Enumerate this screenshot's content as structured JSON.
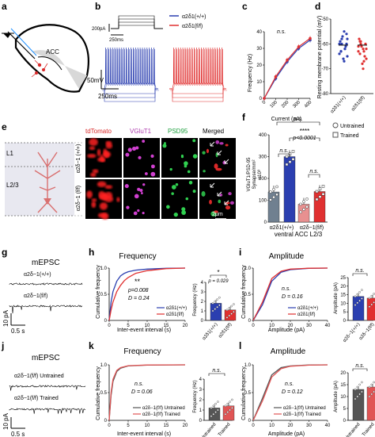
{
  "panel_labels": [
    "a",
    "b",
    "c",
    "d",
    "e",
    "f",
    "g",
    "h",
    "i",
    "j",
    "k",
    "l"
  ],
  "colors": {
    "wt": "#2b3fb0",
    "ko": "#e03030",
    "untrained": "#555555",
    "trained": "#e05555"
  },
  "panel_a": {
    "region": "ACC"
  },
  "panel_b": {
    "stim_scale": "200pA",
    "stim_time": "250ms",
    "trace_scale_v": "50mV",
    "trace_scale_t": "250ms",
    "legend": [
      "α2δ1(+/+)",
      "α2δ1(f/f)"
    ]
  },
  "panel_c": {
    "ylabel": "Frequency (Hz)",
    "xlabel": "Current (pA)",
    "yticks": [
      "0",
      "10",
      "20",
      "30",
      "40"
    ],
    "xticks": [
      "0",
      "100",
      "200",
      "300",
      "400"
    ],
    "ns": "n.s."
  },
  "panel_d": {
    "ylabel": "Resting membrane potential (mV)",
    "yticks": [
      "-50",
      "-60",
      "-70",
      "-80"
    ],
    "xcats": [
      "α2δ1(+/+)",
      "α2δ1(f/f)"
    ]
  },
  "panel_e": {
    "layers": [
      "L1",
      "L2/3"
    ],
    "cols": [
      "tdTomato",
      "VGluT1",
      "PSD95",
      "Merged"
    ],
    "rows": [
      "α2δ−1 (+/+)",
      "α2δ−1 (f/f)"
    ],
    "scale": "2μm"
  },
  "panel_f": {
    "ylabel_1": "VGluT1/PSD-95",
    "ylabel_2": "Synapse/mm²",
    "ylabel_3": "x10³",
    "yticks": [
      "0",
      "100",
      "200",
      "300",
      "400"
    ],
    "xcats": [
      "α2δ1(+/+)",
      "α2δ−1(f/f)"
    ],
    "xlabel": "ventral ACC L2/3",
    "legend": [
      "Untrained",
      "Trained"
    ],
    "stats_top": "n.s.",
    "stats_stars": "****",
    "stats_p": "p<0.0001",
    "stats_ns1": "n.s.",
    "stats_ns2": "n.s."
  },
  "panel_g": {
    "title": "mEPSC",
    "labels": [
      "α2δ−1(+/+)",
      "α2δ−1(f/f)"
    ],
    "scale_y": "10 pA",
    "scale_x": "0.5 s"
  },
  "panel_h": {
    "title": "Frequency",
    "ylabel": "Cumulative frequency",
    "xlabel": "Inter-event interval (s)",
    "stars": "**",
    "p": "p=0.008",
    "D": "D = 0.24",
    "xticks": [
      "0",
      "5",
      "10",
      "15",
      "20"
    ],
    "yticks": [
      "0",
      "0.5",
      "1.0"
    ],
    "legend": [
      "α2δ1(+/+)",
      "α2δ1(f/f)"
    ],
    "inset_ylabel": "Frequency (Hz)",
    "inset_star": "*",
    "inset_p": "p = 0.029",
    "inset_yticks": [
      "0",
      "1",
      "2",
      "3",
      "4"
    ],
    "inset_xcats": [
      "α2δ1(+/+)",
      "α2δ1(f/f)"
    ]
  },
  "panel_i": {
    "title": "Amplitude",
    "ylabel": "Cumulative frequency",
    "xlabel": "Amplitude (pA)",
    "ns": "n.s.",
    "D": "D = 0.16",
    "xticks": [
      "0",
      "10",
      "20",
      "30",
      "40"
    ],
    "yticks": [
      "0",
      "0.5",
      "1.0"
    ],
    "legend": [
      "α2δ1(+/+)",
      "α2δ1(f/f)"
    ],
    "inset_ylabel": "Amplitude (pA)",
    "inset_ns": "n.s.",
    "inset_yticks": [
      "0",
      "5",
      "10",
      "15",
      "20",
      "25"
    ],
    "inset_xcats": [
      "α2δ−1(+/+)",
      "α2δ−1(f/f)"
    ]
  },
  "panel_j": {
    "title": "mEPSC",
    "labels": [
      "α2δ−1(f/f) Untrained",
      "α2δ−1(f/f) Trained"
    ],
    "scale_y": "10 pA",
    "scale_x": "0.5 s"
  },
  "panel_k": {
    "title": "Frequency",
    "ylabel": "Cumulative frequency",
    "xlabel": "Inter-event interval (s)",
    "ns": "n.s.",
    "D": "D = 0.06",
    "xticks": [
      "0",
      "5",
      "10",
      "15",
      "20"
    ],
    "yticks": [
      "0",
      "0.5",
      "1.0"
    ],
    "legend": [
      "α2δ−1(f/f) Untrained",
      "α2δ−1(f/f) Trained"
    ],
    "inset_ylabel": "Frequency (Hz)",
    "inset_ns": "n.s.",
    "inset_yticks": [
      "0",
      "1",
      "2",
      "3",
      "4"
    ],
    "inset_xcats": [
      "Untrained",
      "Trained"
    ]
  },
  "panel_l": {
    "title": "Amplitude",
    "ylabel": "Cumulative frequency",
    "xlabel": "Amplitude (pA)",
    "ns": "n.s.",
    "D": "D = 0.12",
    "xticks": [
      "0",
      "10",
      "20",
      "30",
      "40"
    ],
    "yticks": [
      "0",
      "0.5",
      "1.0"
    ],
    "legend": [
      "α2δ−1(f/f) Untrained",
      "α2δ−1(f/f) Trained"
    ],
    "inset_ylabel": "Amplitude (pA)",
    "inset_ns": "n.s.",
    "inset_yticks": [
      "0",
      "5",
      "10",
      "15",
      "20"
    ],
    "inset_xcats": [
      "Untrained",
      "Trained"
    ]
  },
  "chart_data": [
    {
      "type": "line",
      "x": [
        0,
        100,
        200,
        300,
        400
      ],
      "series": [
        {
          "name": "α2δ1(+/+)",
          "values": [
            0,
            12,
            22,
            30,
            35
          ]
        },
        {
          "name": "α2δ1(f/f)",
          "values": [
            0,
            13,
            23,
            31,
            36
          ]
        }
      ],
      "xlabel": "Current (pA)",
      "ylabel": "Frequency (Hz)",
      "ylim": [
        0,
        40
      ]
    },
    {
      "type": "scatter",
      "categories": [
        "α2δ1(+/+)",
        "α2δ1(f/f)"
      ],
      "series": [
        {
          "name": "α2δ1(+/+)",
          "values": [
            -60,
            -62,
            -58,
            -65,
            -55,
            -63,
            -60,
            -66,
            -59,
            -61,
            -57,
            -64,
            -62,
            -60,
            -58,
            -67,
            -63,
            -56
          ]
        },
        {
          "name": "α2δ1(f/f)",
          "values": [
            -61,
            -63,
            -59,
            -66,
            -62,
            -64,
            -60,
            -68,
            -58,
            -65,
            -61,
            -63,
            -67,
            -60,
            -62,
            -70,
            -59
          ]
        }
      ],
      "ylabel": "Resting membrane potential (mV)",
      "ylim": [
        -80,
        -50
      ]
    },
    {
      "type": "bar",
      "categories": [
        "α2δ1(+/+)",
        "α2δ−1(f/f)"
      ],
      "series": [
        {
          "name": "Untrained",
          "values": [
            138,
            82
          ]
        },
        {
          "name": "Trained",
          "values": [
            300,
            140
          ]
        }
      ],
      "xlabel": "ventral ACC L2/3",
      "ylim": [
        0,
        400
      ]
    },
    {
      "type": "line",
      "x": [
        0,
        0.5,
        1,
        2,
        3,
        4,
        5,
        7,
        10,
        15,
        20
      ],
      "series": [
        {
          "name": "α2δ1(+/+)",
          "values": [
            0,
            0.35,
            0.55,
            0.75,
            0.85,
            0.9,
            0.93,
            0.96,
            0.98,
            0.995,
            1.0
          ]
        },
        {
          "name": "α2δ1(f/f)",
          "values": [
            0,
            0.2,
            0.35,
            0.55,
            0.67,
            0.76,
            0.82,
            0.9,
            0.95,
            0.99,
            1.0
          ]
        }
      ],
      "xlabel": "Inter-event interval (s)",
      "ylabel": "Cumulative frequency",
      "ylim": [
        0,
        1
      ]
    },
    {
      "type": "bar",
      "categories": [
        "α2δ1(+/+)",
        "α2δ1(f/f)"
      ],
      "values": [
        1.8,
        1.1
      ],
      "ylabel": "Frequency (Hz)",
      "ylim": [
        0,
        4
      ]
    },
    {
      "type": "line",
      "x": [
        0,
        5,
        10,
        15,
        20,
        30,
        40
      ],
      "series": [
        {
          "name": "α2δ1(+/+)",
          "values": [
            0,
            0.3,
            0.75,
            0.92,
            0.97,
            0.995,
            1.0
          ]
        },
        {
          "name": "α2δ1(f/f)",
          "values": [
            0,
            0.35,
            0.8,
            0.94,
            0.98,
            0.997,
            1.0
          ]
        }
      ],
      "xlabel": "Amplitude (pA)",
      "ylabel": "Cumulative frequency",
      "ylim": [
        0,
        1
      ]
    },
    {
      "type": "bar",
      "categories": [
        "α2δ−1(+/+)",
        "α2δ−1(f/f)"
      ],
      "values": [
        14,
        13
      ],
      "ylabel": "Amplitude (pA)",
      "ylim": [
        0,
        25
      ]
    },
    {
      "type": "line",
      "x": [
        0,
        0.5,
        1,
        2,
        3,
        5,
        10,
        20
      ],
      "series": [
        {
          "name": "α2δ−1(f/f) Untrained",
          "values": [
            0,
            0.45,
            0.7,
            0.88,
            0.94,
            0.98,
            0.995,
            1.0
          ]
        },
        {
          "name": "α2δ−1(f/f) Trained",
          "values": [
            0,
            0.5,
            0.74,
            0.9,
            0.95,
            0.985,
            0.997,
            1.0
          ]
        }
      ],
      "xlabel": "Inter-event interval (s)",
      "ylabel": "Cumulative frequency",
      "ylim": [
        0,
        1
      ]
    },
    {
      "type": "bar",
      "categories": [
        "Untrained",
        "Trained"
      ],
      "values": [
        1.2,
        1.4
      ],
      "ylabel": "Frequency (Hz)",
      "ylim": [
        0,
        4
      ]
    },
    {
      "type": "line",
      "x": [
        0,
        5,
        10,
        15,
        20,
        30,
        40
      ],
      "series": [
        {
          "name": "α2δ−1(f/f) Untrained",
          "values": [
            0,
            0.4,
            0.82,
            0.95,
            0.98,
            0.997,
            1.0
          ]
        },
        {
          "name": "α2δ−1(f/f) Trained",
          "values": [
            0,
            0.35,
            0.78,
            0.93,
            0.975,
            0.995,
            1.0
          ]
        }
      ],
      "xlabel": "Amplitude (pA)",
      "ylabel": "Cumulative frequency",
      "ylim": [
        0,
        1
      ]
    },
    {
      "type": "bar",
      "categories": [
        "Untrained",
        "Trained"
      ],
      "values": [
        13,
        14
      ],
      "ylabel": "Amplitude (pA)",
      "ylim": [
        0,
        20
      ]
    }
  ]
}
